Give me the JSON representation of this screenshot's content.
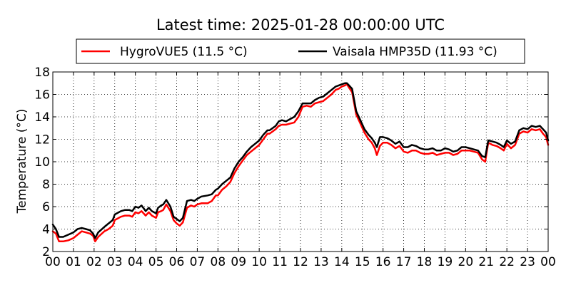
{
  "chart_data": {
    "type": "line",
    "title": "Latest time: 2025-01-28 00:00:00 UTC",
    "xlabel": "",
    "ylabel": "Temperature (°C)",
    "xlim": [
      0,
      24
    ],
    "ylim": [
      2,
      18
    ],
    "xticks": [
      "00",
      "01",
      "02",
      "03",
      "04",
      "05",
      "06",
      "07",
      "08",
      "09",
      "10",
      "11",
      "12",
      "13",
      "14",
      "15",
      "16",
      "17",
      "18",
      "19",
      "20",
      "21",
      "22",
      "23",
      "00"
    ],
    "yticks": [
      2,
      4,
      6,
      8,
      10,
      12,
      14,
      16,
      18
    ],
    "grid": true,
    "legend_position": "top-center",
    "series": [
      {
        "name": "HygroVUE5 (11.5 °C)",
        "color": "#ff0000",
        "x": [
          0,
          0.15,
          0.3,
          0.5,
          0.75,
          1,
          1.2,
          1.4,
          1.6,
          1.8,
          1.95,
          2.05,
          2.2,
          2.5,
          2.7,
          2.9,
          3,
          3.3,
          3.5,
          3.7,
          3.85,
          4,
          4.15,
          4.3,
          4.5,
          4.65,
          4.8,
          4.9,
          5,
          5.1,
          5.25,
          5.35,
          5.5,
          5.7,
          5.85,
          6,
          6.15,
          6.3,
          6.5,
          6.7,
          6.85,
          7,
          7.2,
          7.5,
          7.7,
          7.9,
          8,
          8.2,
          8.4,
          8.6,
          8.8,
          9,
          9.2,
          9.4,
          9.6,
          9.8,
          10,
          10.2,
          10.4,
          10.5,
          10.65,
          10.8,
          10.95,
          11.1,
          11.3,
          11.5,
          11.7,
          11.9,
          12.1,
          12.3,
          12.5,
          12.7,
          12.9,
          13.1,
          13.3,
          13.5,
          13.7,
          13.85,
          14,
          14.15,
          14.25,
          14.35,
          14.5,
          14.7,
          14.9,
          15.1,
          15.3,
          15.45,
          15.6,
          15.7,
          15.85,
          16,
          16.2,
          16.4,
          16.6,
          16.8,
          17,
          17.2,
          17.4,
          17.6,
          17.8,
          18,
          18.2,
          18.4,
          18.6,
          18.8,
          19,
          19.2,
          19.4,
          19.6,
          19.8,
          20,
          20.2,
          20.4,
          20.6,
          20.8,
          20.95,
          21.1,
          21.3,
          21.5,
          21.7,
          21.85,
          22,
          22.2,
          22.4,
          22.6,
          22.8,
          23,
          23.2,
          23.4,
          23.6,
          23.75,
          23.9,
          24
        ],
        "values": [
          3.8,
          3.6,
          2.9,
          2.9,
          3.0,
          3.2,
          3.5,
          3.8,
          3.7,
          3.6,
          3.4,
          2.9,
          3.3,
          3.8,
          4.0,
          4.3,
          4.8,
          5.1,
          5.2,
          5.2,
          5.1,
          5.5,
          5.4,
          5.6,
          5.2,
          5.5,
          5.2,
          5.1,
          5.0,
          5.5,
          5.6,
          5.7,
          6.2,
          5.6,
          4.8,
          4.5,
          4.3,
          4.6,
          5.9,
          6.1,
          6.0,
          6.2,
          6.3,
          6.3,
          6.5,
          7.0,
          7.0,
          7.5,
          7.8,
          8.2,
          9.0,
          9.6,
          10.1,
          10.6,
          10.9,
          11.2,
          11.5,
          12.0,
          12.5,
          12.5,
          12.7,
          12.9,
          13.2,
          13.3,
          13.3,
          13.4,
          13.5,
          14.0,
          14.9,
          15.0,
          14.9,
          15.2,
          15.3,
          15.4,
          15.7,
          16.0,
          16.4,
          16.5,
          16.7,
          16.8,
          16.9,
          16.6,
          16.2,
          14.2,
          13.4,
          12.6,
          12.0,
          11.7,
          11.2,
          10.6,
          11.4,
          11.7,
          11.7,
          11.5,
          11.2,
          11.4,
          10.9,
          10.8,
          11.0,
          11.0,
          10.8,
          10.7,
          10.7,
          10.8,
          10.6,
          10.7,
          10.8,
          10.8,
          10.6,
          10.7,
          11.0,
          11.0,
          11.0,
          10.9,
          10.8,
          10.2,
          10.0,
          11.7,
          11.5,
          11.4,
          11.2,
          11.0,
          11.6,
          11.2,
          11.5,
          12.5,
          12.7,
          12.6,
          12.9,
          12.8,
          12.9,
          12.5,
          12.2,
          11.5
        ]
      },
      {
        "name": "Vaisala HMP35D (11.93 °C)",
        "color": "#000000",
        "x": [
          0,
          0.15,
          0.3,
          0.5,
          0.75,
          1,
          1.2,
          1.4,
          1.6,
          1.8,
          1.95,
          2.05,
          2.2,
          2.5,
          2.7,
          2.9,
          3,
          3.3,
          3.5,
          3.7,
          3.85,
          4,
          4.15,
          4.3,
          4.5,
          4.65,
          4.8,
          4.9,
          5,
          5.1,
          5.25,
          5.35,
          5.5,
          5.7,
          5.85,
          6,
          6.15,
          6.3,
          6.5,
          6.7,
          6.85,
          7,
          7.2,
          7.5,
          7.7,
          7.9,
          8,
          8.2,
          8.4,
          8.6,
          8.8,
          9,
          9.2,
          9.4,
          9.6,
          9.8,
          10,
          10.2,
          10.4,
          10.5,
          10.65,
          10.8,
          10.95,
          11.1,
          11.3,
          11.5,
          11.7,
          11.9,
          12.1,
          12.3,
          12.5,
          12.7,
          12.9,
          13.1,
          13.3,
          13.5,
          13.7,
          13.85,
          14,
          14.15,
          14.25,
          14.35,
          14.5,
          14.7,
          14.9,
          15.1,
          15.3,
          15.45,
          15.6,
          15.7,
          15.85,
          16,
          16.2,
          16.4,
          16.6,
          16.8,
          17,
          17.2,
          17.4,
          17.6,
          17.8,
          18,
          18.2,
          18.4,
          18.6,
          18.8,
          19,
          19.2,
          19.4,
          19.6,
          19.8,
          20,
          20.2,
          20.4,
          20.6,
          20.8,
          20.95,
          21.1,
          21.3,
          21.5,
          21.7,
          21.85,
          22,
          22.2,
          22.4,
          22.6,
          22.8,
          23,
          23.2,
          23.4,
          23.6,
          23.75,
          23.9,
          24
        ],
        "values": [
          4.4,
          4.0,
          3.3,
          3.3,
          3.5,
          3.7,
          4.0,
          4.1,
          4.0,
          3.9,
          3.6,
          3.2,
          3.7,
          4.2,
          4.5,
          4.8,
          5.3,
          5.6,
          5.7,
          5.7,
          5.6,
          6.0,
          5.9,
          6.1,
          5.6,
          5.9,
          5.6,
          5.5,
          5.4,
          5.9,
          6.1,
          6.2,
          6.6,
          6.0,
          5.1,
          4.9,
          4.7,
          5.0,
          6.5,
          6.6,
          6.5,
          6.7,
          6.9,
          7.0,
          7.1,
          7.5,
          7.6,
          8.0,
          8.3,
          8.6,
          9.4,
          10.0,
          10.4,
          10.9,
          11.3,
          11.6,
          11.9,
          12.4,
          12.8,
          12.8,
          13.0,
          13.2,
          13.6,
          13.7,
          13.6,
          13.8,
          14.0,
          14.5,
          15.2,
          15.2,
          15.2,
          15.5,
          15.7,
          15.8,
          16.1,
          16.4,
          16.7,
          16.8,
          16.9,
          17.0,
          17.0,
          16.8,
          16.5,
          14.5,
          13.7,
          12.9,
          12.4,
          12.1,
          11.7,
          11.3,
          12.2,
          12.2,
          12.1,
          11.9,
          11.6,
          11.8,
          11.3,
          11.3,
          11.5,
          11.4,
          11.2,
          11.1,
          11.1,
          11.2,
          11.0,
          11.0,
          11.2,
          11.1,
          10.9,
          11.0,
          11.3,
          11.3,
          11.2,
          11.1,
          11.0,
          10.5,
          10.4,
          11.9,
          11.8,
          11.7,
          11.5,
          11.3,
          11.9,
          11.6,
          11.8,
          12.8,
          13.0,
          12.9,
          13.2,
          13.1,
          13.2,
          12.9,
          12.6,
          11.9
        ]
      }
    ]
  }
}
